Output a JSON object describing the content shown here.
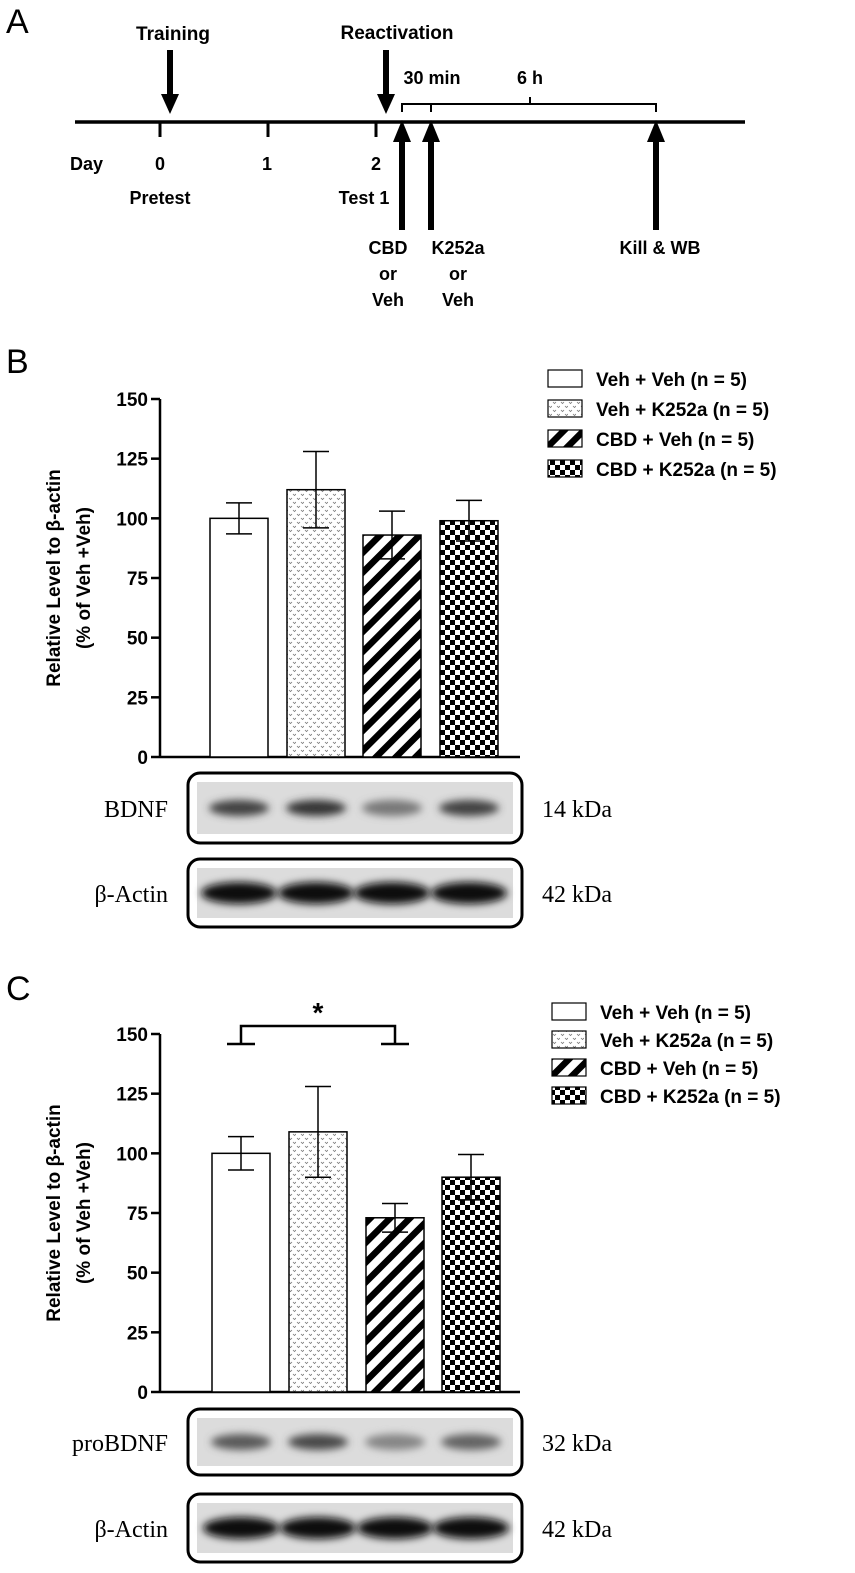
{
  "panel_labels": {
    "a": "A",
    "b": "B",
    "c": "C"
  },
  "timeline": {
    "day_label": "Day",
    "ticks": [
      "0",
      "1",
      "2"
    ],
    "events": {
      "training": "Training",
      "reactivation": "Reactivation",
      "pretest": "Pretest",
      "test1": "Test 1",
      "interval_short": "30 min",
      "interval_long": "6 h",
      "cbd_lines": [
        "CBD",
        "or",
        "Veh"
      ],
      "k252a_lines": [
        "K252a",
        "or",
        "Veh"
      ],
      "kill": "Kill & WB"
    }
  },
  "chart_data": [
    {
      "type": "bar",
      "panel": "B",
      "categories": [
        "Veh + Veh (n = 5)",
        "Veh + K252a (n = 5)",
        "CBD + Veh (n = 5)",
        "CBD + K252a (n = 5)"
      ],
      "values": [
        100,
        112,
        93,
        99
      ],
      "errors": [
        6.5,
        16,
        10,
        8.5
      ],
      "ylabel_lines": [
        "Relative Level to β-actin",
        "(% of Veh +Veh)"
      ],
      "ylim": [
        0,
        150
      ],
      "yticks": [
        "0",
        "25",
        "50",
        "75",
        "100",
        "125",
        "150"
      ],
      "legend": [
        "Veh + Veh (n = 5)",
        "Veh + K252a (n = 5)",
        "CBD + Veh (n = 5)",
        "CBD + K252a (n = 5)"
      ],
      "legend_position": "top-right",
      "patterns": [
        "white",
        "dots",
        "diagonal",
        "checker"
      ],
      "blots": [
        {
          "label": "BDNF",
          "size": "14 kDa",
          "intensity": [
            0.72,
            0.78,
            0.45,
            0.72
          ]
        },
        {
          "label": "β-Actin",
          "size": "42 kDa",
          "intensity": [
            1.0,
            1.0,
            1.0,
            1.0
          ]
        }
      ]
    },
    {
      "type": "bar",
      "panel": "C",
      "categories": [
        "Veh + Veh (n = 5)",
        "Veh + K252a (n = 5)",
        "CBD + Veh (n = 5)",
        "CBD + K252a (n = 5)"
      ],
      "values": [
        100,
        109,
        73,
        90
      ],
      "errors": [
        7,
        19,
        6,
        9.5
      ],
      "ylabel_lines": [
        "Relative Level to β-actin",
        "(% of Veh +Veh)"
      ],
      "ylim": [
        0,
        150
      ],
      "yticks": [
        "0",
        "25",
        "50",
        "75",
        "100",
        "125",
        "150"
      ],
      "significance": {
        "label": "*",
        "between": [
          0,
          2
        ]
      },
      "legend": [
        "Veh + Veh (n = 5)",
        "Veh + K252a (n = 5)",
        "CBD + Veh (n = 5)",
        "CBD + K252a (n = 5)"
      ],
      "legend_position": "top-right",
      "patterns": [
        "white",
        "dots",
        "diagonal",
        "checker"
      ],
      "blots": [
        {
          "label": "proBDNF",
          "size": "32 kDa",
          "intensity": [
            0.6,
            0.68,
            0.38,
            0.55
          ]
        },
        {
          "label": "β-Actin",
          "size": "42 kDa",
          "intensity": [
            1.0,
            1.0,
            1.0,
            1.0
          ]
        }
      ]
    }
  ]
}
